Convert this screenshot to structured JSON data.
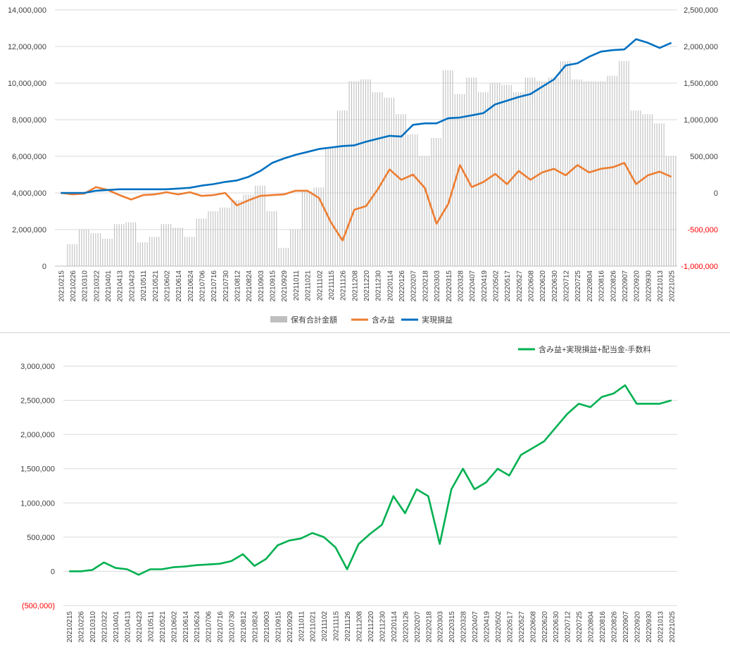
{
  "chart_data": [
    {
      "type": "bar+line",
      "left_yticks": [
        "14,000,000",
        "12,000,000",
        "10,000,000",
        "8,000,000",
        "6,000,000",
        "4,000,000",
        "2,000,000",
        "0"
      ],
      "right_yticks": [
        "2,500,000",
        "2,000,000",
        "1,500,000",
        "1,000,000",
        "500,000",
        "0",
        "-500,000",
        "-1,000,000"
      ],
      "ylim_left": [
        0,
        14000000
      ],
      "ylim_right": [
        -1000000,
        2500000
      ],
      "x_tick_labels": [
        "20210215",
        "20210226",
        "20210310",
        "20210322",
        "20210401",
        "20210413",
        "20210423",
        "20210511",
        "20210521",
        "20210602",
        "20210614",
        "20210624",
        "20210706",
        "20210716",
        "20210730",
        "20210812",
        "20210824",
        "20210903",
        "20210915",
        "20210929",
        "20211011",
        "20211021",
        "20211102",
        "20211115",
        "20211126",
        "20211208",
        "20211220",
        "20211230",
        "20220114",
        "20220126",
        "20220207",
        "20220218",
        "20220303",
        "20220315",
        "20220328",
        "20220407",
        "20220419",
        "20220502",
        "20220517",
        "20220527",
        "20220608",
        "20220620",
        "20220630",
        "20220712",
        "20220725",
        "20220804",
        "20220816",
        "20220826",
        "20220907",
        "20220920",
        "20220930",
        "20221013",
        "20221025"
      ],
      "series": [
        {
          "name": "保有合計金額",
          "kind": "bar",
          "axis": "left",
          "color": "#bfbfbf",
          "values": [
            0,
            1200000,
            2000000,
            1800000,
            1500000,
            2300000,
            2400000,
            1300000,
            1600000,
            2300000,
            2100000,
            1600000,
            2600000,
            3000000,
            3200000,
            3600000,
            3900000,
            4400000,
            3000000,
            1000000,
            2000000,
            4100000,
            4300000,
            6500000,
            8500000,
            10100000,
            10200000,
            9500000,
            9200000,
            8300000,
            7200000,
            6000000,
            7000000,
            10700000,
            9400000,
            10300000,
            9500000,
            10000000,
            9900000,
            9500000,
            10300000,
            10100000,
            10300000,
            11200000,
            10200000,
            10100000,
            10100000,
            10400000,
            11200000,
            8500000,
            8300000,
            7800000,
            6000000
          ]
        },
        {
          "name": "含み益",
          "kind": "line",
          "axis": "right",
          "color": "#ed7d31",
          "values": [
            0,
            -20000,
            -10000,
            80000,
            40000,
            -30000,
            -90000,
            -30000,
            -20000,
            10000,
            -20000,
            10000,
            -40000,
            -30000,
            0,
            -170000,
            -100000,
            -40000,
            -30000,
            -20000,
            30000,
            30000,
            -70000,
            -400000,
            -650000,
            -230000,
            -180000,
            50000,
            320000,
            180000,
            250000,
            70000,
            -420000,
            -150000,
            380000,
            80000,
            150000,
            260000,
            120000,
            300000,
            180000,
            280000,
            330000,
            240000,
            380000,
            280000,
            330000,
            350000,
            410000,
            120000,
            240000,
            290000,
            220000
          ]
        },
        {
          "name": "実現損益",
          "kind": "line",
          "axis": "right",
          "color": "#0070c0",
          "values": [
            0,
            0,
            0,
            30000,
            40000,
            50000,
            50000,
            50000,
            50000,
            50000,
            60000,
            70000,
            100000,
            120000,
            150000,
            170000,
            220000,
            300000,
            410000,
            470000,
            520000,
            560000,
            600000,
            620000,
            640000,
            650000,
            700000,
            740000,
            780000,
            770000,
            930000,
            950000,
            950000,
            1020000,
            1030000,
            1060000,
            1090000,
            1210000,
            1260000,
            1310000,
            1350000,
            1450000,
            1550000,
            1740000,
            1770000,
            1860000,
            1930000,
            1950000,
            1960000,
            2100000,
            2050000,
            1980000,
            2050000
          ]
        }
      ],
      "legend": "bottom"
    },
    {
      "type": "line",
      "yticks": [
        "3,000,000",
        "2,500,000",
        "2,000,000",
        "1,500,000",
        "1,000,000",
        "500,000",
        "0",
        "(500,000)"
      ],
      "ylim": [
        -500000,
        3000000
      ],
      "x_tick_labels": [
        "20210215",
        "20210226",
        "20210310",
        "20210322",
        "20210401",
        "20210413",
        "20210423",
        "20210511",
        "20210521",
        "20210602",
        "20210614",
        "20210624",
        "20210706",
        "20210716",
        "20210730",
        "20210812",
        "20210824",
        "20210903",
        "20210915",
        "20210929",
        "20211011",
        "20211021",
        "20211102",
        "20211115",
        "20211126",
        "20211208",
        "20211220",
        "20211230",
        "20220114",
        "20220126",
        "20220207",
        "20220218",
        "20220303",
        "20220315",
        "20220328",
        "20220407",
        "20220419",
        "20220502",
        "20220517",
        "20220527",
        "20220608",
        "20220620",
        "20220630",
        "20220712",
        "20220725",
        "20220804",
        "20220816",
        "20220826",
        "20220907",
        "20220920",
        "20220930",
        "20221013",
        "20221025"
      ],
      "series": [
        {
          "name": "含み益+実現損益+配当金-手数料",
          "color": "#00b050",
          "values": [
            0,
            0,
            20000,
            130000,
            50000,
            30000,
            -50000,
            30000,
            30000,
            60000,
            70000,
            90000,
            100000,
            110000,
            150000,
            250000,
            80000,
            180000,
            380000,
            450000,
            480000,
            560000,
            500000,
            350000,
            30000,
            400000,
            550000,
            680000,
            1100000,
            850000,
            1200000,
            1100000,
            400000,
            1200000,
            1500000,
            1200000,
            1300000,
            1500000,
            1400000,
            1700000,
            1800000,
            1900000,
            2100000,
            2300000,
            2450000,
            2400000,
            2550000,
            2600000,
            2720000,
            2450000,
            2450000,
            2450000,
            2500000
          ]
        }
      ],
      "legend": "top-right"
    }
  ]
}
